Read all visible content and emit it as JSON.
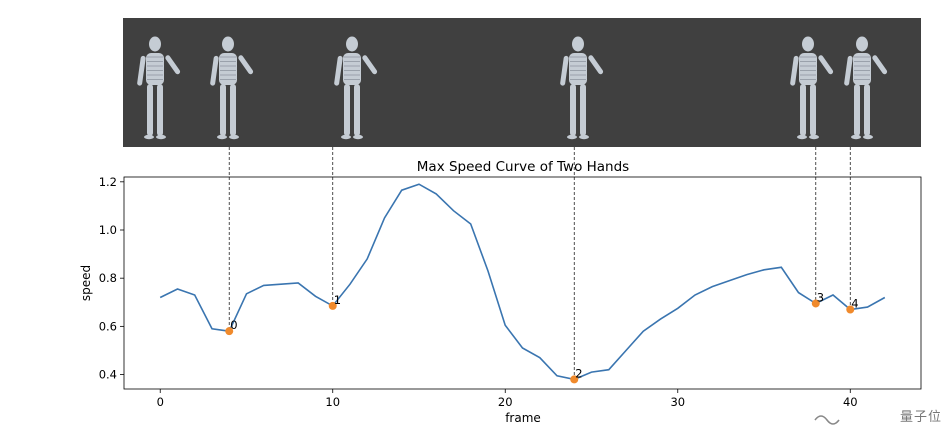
{
  "panel": {
    "background": "#404040",
    "figure_color": "#c5ccd4",
    "figure_count": 6
  },
  "chart_data": {
    "type": "line",
    "title": "Max Speed Curve of Two Hands",
    "xlabel": "frame",
    "ylabel": "speed",
    "xlim": [
      -2.1,
      44.1
    ],
    "ylim": [
      0.34,
      1.22
    ],
    "xticks": [
      0,
      10,
      20,
      30,
      40
    ],
    "yticks": [
      0.4,
      0.6,
      0.8,
      1.0,
      1.2
    ],
    "xtick_labels": [
      "0",
      "10",
      "20",
      "30",
      "40"
    ],
    "ytick_labels": [
      "0.4",
      "0.6",
      "0.8",
      "1.0",
      "1.2"
    ],
    "grid": false,
    "line_color": "#3a75b0",
    "marker_color": "#f08a2c",
    "x": [
      0,
      1,
      2,
      3,
      4,
      5,
      6,
      7,
      8,
      9,
      10,
      11,
      12,
      13,
      14,
      15,
      16,
      17,
      18,
      19,
      20,
      21,
      22,
      23,
      24,
      25,
      26,
      27,
      28,
      29,
      30,
      31,
      32,
      33,
      34,
      35,
      36,
      37,
      38,
      39,
      40,
      41,
      42
    ],
    "y": [
      0.72,
      0.755,
      0.73,
      0.59,
      0.58,
      0.735,
      0.77,
      0.775,
      0.78,
      0.725,
      0.685,
      0.775,
      0.88,
      1.05,
      1.165,
      1.19,
      1.15,
      1.08,
      1.025,
      0.83,
      0.605,
      0.51,
      0.47,
      0.395,
      0.38,
      0.41,
      0.42,
      0.5,
      0.58,
      0.63,
      0.675,
      0.73,
      0.765,
      0.79,
      0.815,
      0.835,
      0.845,
      0.74,
      0.695,
      0.73,
      0.67,
      0.68,
      0.72
    ],
    "keyframes": [
      {
        "x": 4,
        "y": 0.58,
        "label": "0"
      },
      {
        "x": 10,
        "y": 0.685,
        "label": "1"
      },
      {
        "x": 24,
        "y": 0.38,
        "label": "2"
      },
      {
        "x": 38,
        "y": 0.695,
        "label": "3"
      },
      {
        "x": 40,
        "y": 0.67,
        "label": "4"
      }
    ]
  },
  "watermark": {
    "text": "量子位"
  }
}
